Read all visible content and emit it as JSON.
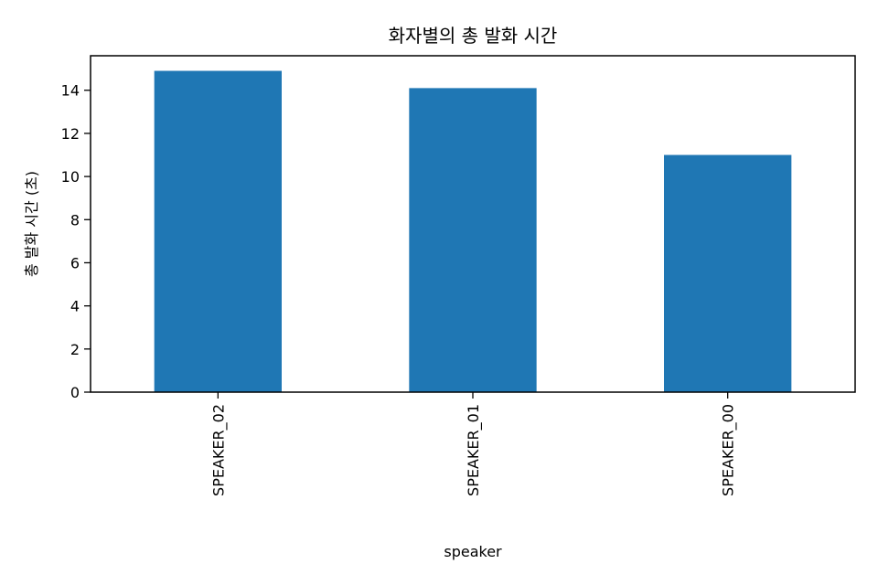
{
  "chart_data": {
    "type": "bar",
    "title": "화자별의 총 발화 시간",
    "xlabel": "speaker",
    "ylabel": "총 발화 시간 (초)",
    "categories": [
      "SPEAKER_02",
      "SPEAKER_01",
      "SPEAKER_00"
    ],
    "values": [
      14.9,
      14.1,
      11.0
    ],
    "ylim": [
      0,
      15.6
    ],
    "yticks": [
      0,
      2,
      4,
      6,
      8,
      10,
      12,
      14
    ],
    "bar_color": "#1f77b4",
    "grid": false,
    "legend": "none"
  }
}
